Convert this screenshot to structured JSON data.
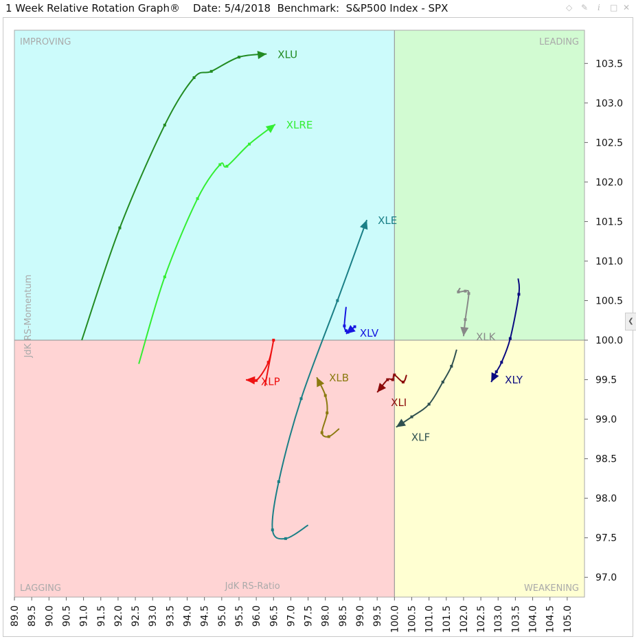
{
  "window": {
    "title": "1 Week Relative Rotation Graph®    Date: 5/4/2018  Benchmark:  S&P500 Index - SPX"
  },
  "icons": [
    "diamond-icon",
    "pin-icon",
    "info-icon",
    "close-icon",
    "chevron-left-icon"
  ],
  "chart_data": {
    "type": "scatter",
    "title": "1 Week Relative Rotation Graph®",
    "date": "5/4/2018",
    "benchmark": "S&P500 Index - SPX",
    "xlabel": "JdK RS-Ratio",
    "ylabel": "JdK RS-Momentum",
    "xlim": [
      89.0,
      105.5
    ],
    "ylim": [
      96.75,
      103.92
    ],
    "x_ticks": [
      "89.0",
      "89.5",
      "90.0",
      "90.5",
      "91.0",
      "91.5",
      "92.0",
      "92.5",
      "93.0",
      "93.5",
      "94.0",
      "94.5",
      "95.0",
      "95.5",
      "96.0",
      "96.5",
      "97.0",
      "97.5",
      "98.0",
      "98.5",
      "99.0",
      "99.5",
      "100.0",
      "100.5",
      "101.0",
      "101.5",
      "102.0",
      "102.5",
      "103.0",
      "103.5",
      "104.0",
      "104.5",
      "105.0"
    ],
    "y_ticks": [
      "97.0",
      "97.5",
      "98.0",
      "98.5",
      "99.0",
      "99.5",
      "100.0",
      "100.5",
      "101.0",
      "101.5",
      "102.0",
      "102.5",
      "103.0",
      "103.5"
    ],
    "quadrants": [
      {
        "name": "IMPROVING",
        "position": "top-left",
        "color": "#ccfbfb"
      },
      {
        "name": "LEADING",
        "position": "top-right",
        "color": "#d2fbd2"
      },
      {
        "name": "LAGGING",
        "position": "bottom-left",
        "color": "#ffd4d4"
      },
      {
        "name": "WEAKENING",
        "position": "bottom-right",
        "color": "#ffffd2"
      }
    ],
    "grid": false,
    "series": [
      {
        "name": "XLU",
        "color": "#228b22",
        "points": [
          [
            90.95,
            100.0
          ],
          [
            92.05,
            101.42
          ],
          [
            93.35,
            102.72
          ],
          [
            94.2,
            103.32
          ],
          [
            94.7,
            103.4
          ],
          [
            95.5,
            103.58
          ],
          [
            96.3,
            103.62
          ]
        ]
      },
      {
        "name": "XLRE",
        "color": "#33ee33",
        "points": [
          [
            92.6,
            99.7
          ],
          [
            93.35,
            100.8
          ],
          [
            94.3,
            101.79
          ],
          [
            94.95,
            102.22
          ],
          [
            95.15,
            102.2
          ],
          [
            95.8,
            102.48
          ],
          [
            96.55,
            102.73
          ]
        ]
      },
      {
        "name": "XLE",
        "color": "#1a7f86",
        "points": [
          [
            97.5,
            97.66
          ],
          [
            96.85,
            97.49
          ],
          [
            96.47,
            97.6
          ],
          [
            96.65,
            98.21
          ],
          [
            97.3,
            99.26
          ],
          [
            98.35,
            100.5
          ],
          [
            99.2,
            101.52
          ]
        ]
      },
      {
        "name": "XLV",
        "color": "#1515e0",
        "points": [
          [
            98.6,
            100.42
          ],
          [
            98.55,
            100.18
          ],
          [
            98.6,
            100.12
          ],
          [
            98.65,
            100.1
          ],
          [
            98.85,
            100.17
          ],
          [
            98.6,
            100.08
          ]
        ]
      },
      {
        "name": "XLK",
        "color": "#888888",
        "points": [
          [
            101.9,
            100.66
          ],
          [
            101.85,
            100.61
          ],
          [
            102.05,
            100.62
          ],
          [
            102.15,
            100.59
          ],
          [
            102.05,
            100.26
          ],
          [
            102.0,
            100.05
          ]
        ]
      },
      {
        "name": "XLY",
        "color": "#0a0a80",
        "points": [
          [
            103.58,
            100.78
          ],
          [
            103.6,
            100.58
          ],
          [
            103.35,
            100.02
          ],
          [
            103.1,
            99.72
          ],
          [
            102.95,
            99.6
          ],
          [
            102.8,
            99.47
          ]
        ]
      },
      {
        "name": "XLP",
        "color": "#ee1111",
        "points": [
          [
            96.25,
            99.42
          ],
          [
            96.5,
            100.0
          ],
          [
            96.35,
            99.72
          ],
          [
            96.0,
            99.49
          ],
          [
            95.7,
            99.5
          ]
        ]
      },
      {
        "name": "XLB",
        "color": "#8b7a10",
        "points": [
          [
            98.4,
            98.88
          ],
          [
            98.1,
            98.78
          ],
          [
            97.9,
            98.83
          ],
          [
            98.05,
            99.08
          ],
          [
            98.0,
            99.3
          ],
          [
            97.75,
            99.53
          ]
        ]
      },
      {
        "name": "XLI",
        "color": "#8b0a0a",
        "points": [
          [
            100.35,
            99.56
          ],
          [
            100.25,
            99.47
          ],
          [
            100.0,
            99.56
          ],
          [
            99.95,
            99.5
          ],
          [
            99.8,
            99.5
          ],
          [
            99.5,
            99.34
          ]
        ]
      },
      {
        "name": "XLF",
        "color": "#2f5050",
        "points": [
          [
            101.8,
            99.88
          ],
          [
            101.65,
            99.67
          ],
          [
            101.4,
            99.47
          ],
          [
            101.0,
            99.19
          ],
          [
            100.5,
            99.03
          ],
          [
            100.05,
            98.9
          ]
        ]
      }
    ]
  }
}
